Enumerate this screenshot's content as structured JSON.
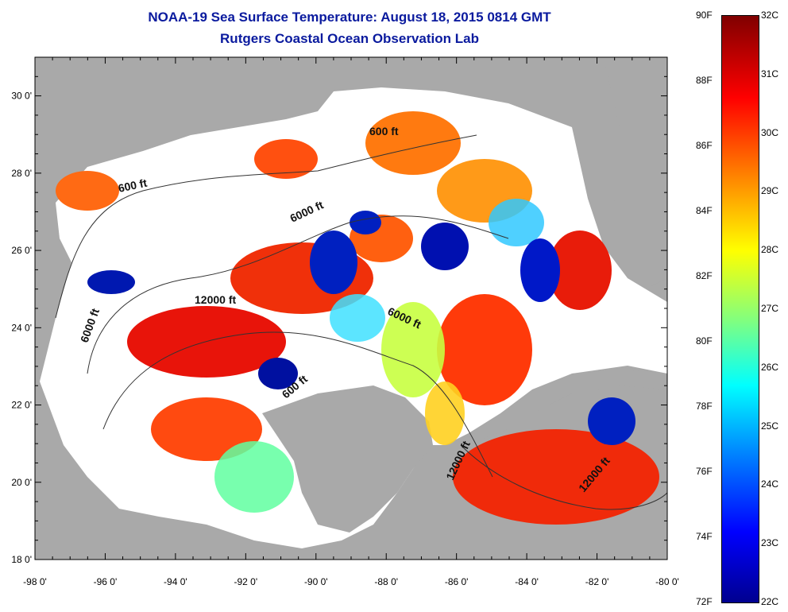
{
  "header": {
    "title": "NOAA-19 Sea Surface Temperature:  August 18, 2015 0814 GMT",
    "subtitle": "Rutgers Coastal Ocean Observation Lab"
  },
  "map": {
    "lon_ticks": [
      "-98 0'",
      "-96 0'",
      "-94 0'",
      "-92 0'",
      "-90 0'",
      "-88 0'",
      "-86 0'",
      "-84 0'",
      "-82 0'",
      "-80 0'"
    ],
    "lat_ticks": [
      "30 0'",
      "28 0'",
      "26 0'",
      "24 0'",
      "22 0'",
      "20 0'",
      "18 0'"
    ],
    "lon_range": [
      -98,
      -80
    ],
    "lat_range": [
      18,
      31
    ],
    "contour_labels": [
      "600 ft",
      "600 ft",
      "6000 ft",
      "12000 ft",
      "6000 ft",
      "6000 ft",
      "600 ft",
      "12000 ft",
      "12000 ft"
    ],
    "colors": {
      "land": "#a9a9a9",
      "no_data": "#ffffff",
      "title": "#0a1a9e"
    }
  },
  "colorbar": {
    "fahrenheit": [
      "90F",
      "88F",
      "86F",
      "84F",
      "82F",
      "80F",
      "78F",
      "76F",
      "74F",
      "72F"
    ],
    "celsius": [
      "32C",
      "31C",
      "30C",
      "29C",
      "28C",
      "27C",
      "26C",
      "25C",
      "24C",
      "23C",
      "22C"
    ],
    "range_f": [
      72,
      90
    ],
    "range_c": [
      22,
      32
    ]
  }
}
